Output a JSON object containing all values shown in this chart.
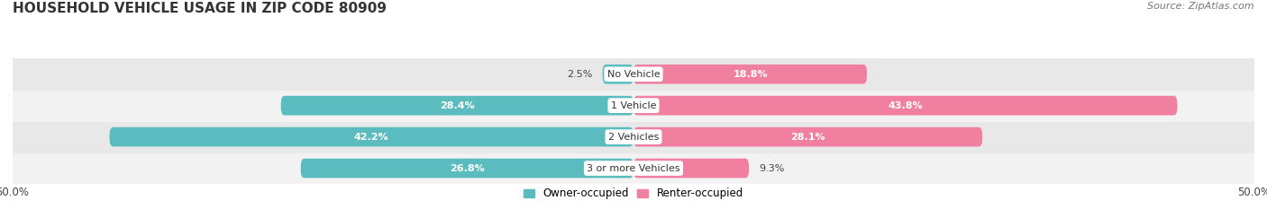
{
  "title": "HOUSEHOLD VEHICLE USAGE IN ZIP CODE 80909",
  "source": "Source: ZipAtlas.com",
  "categories": [
    "No Vehicle",
    "1 Vehicle",
    "2 Vehicles",
    "3 or more Vehicles"
  ],
  "owner_values": [
    2.5,
    28.4,
    42.2,
    26.8
  ],
  "renter_values": [
    18.8,
    43.8,
    28.1,
    9.3
  ],
  "owner_color": "#5bbcbf",
  "renter_color": "#f07fa0",
  "owner_color_dark": "#3aa8ab",
  "renter_color_dark": "#e8608a",
  "background_row_even": "#f0f0f0",
  "background_row_odd": "#e8e8e8",
  "xlim": [
    -50,
    50
  ],
  "owner_label": "Owner-occupied",
  "renter_label": "Renter-occupied",
  "title_fontsize": 11,
  "source_fontsize": 8,
  "label_fontsize": 8,
  "cat_fontsize": 8,
  "bar_height": 0.62,
  "fig_width": 14.06,
  "fig_height": 2.33
}
